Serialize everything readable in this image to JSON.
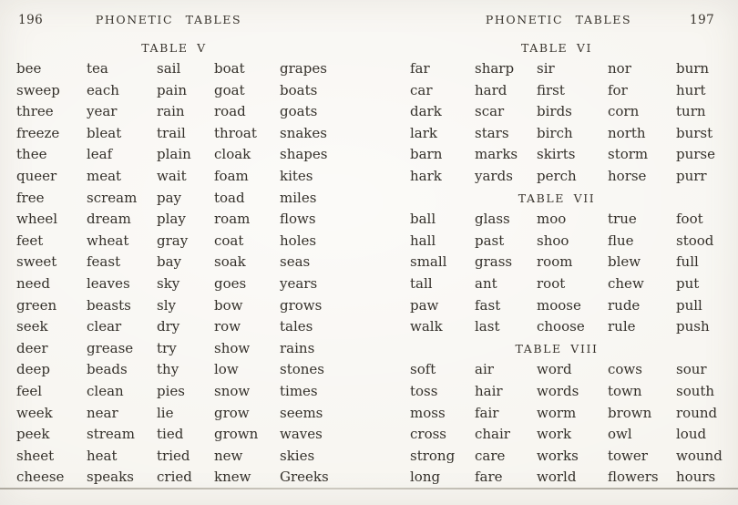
{
  "meta": {
    "paper_color": "#f7f5f0",
    "ink_color": "#34302a",
    "kind": "scanned-book-spread"
  },
  "left_page": {
    "page_number": "196",
    "running_head": "PHONETIC TABLES",
    "tables": [
      {
        "title": "TABLE V",
        "rows": [
          [
            "bee",
            "tea",
            "sail",
            "boat",
            "grapes"
          ],
          [
            "sweep",
            "each",
            "pain",
            "goat",
            "boats"
          ],
          [
            "three",
            "year",
            "rain",
            "road",
            "goats"
          ],
          [
            "freeze",
            "bleat",
            "trail",
            "throat",
            "snakes"
          ],
          [
            "thee",
            "leaf",
            "plain",
            "cloak",
            "shapes"
          ],
          [
            "queer",
            "meat",
            "wait",
            "foam",
            "kites"
          ],
          [
            "free",
            "scream",
            "pay",
            "toad",
            "miles"
          ],
          [
            "wheel",
            "dream",
            "play",
            "roam",
            "flows"
          ],
          [
            "feet",
            "wheat",
            "gray",
            "coat",
            "holes"
          ],
          [
            "sweet",
            "feast",
            "bay",
            "soak",
            "seas"
          ],
          [
            "need",
            "leaves",
            "sky",
            "goes",
            "years"
          ],
          [
            "green",
            "beasts",
            "sly",
            "bow",
            "grows"
          ],
          [
            "seek",
            "clear",
            "dry",
            "row",
            "tales"
          ],
          [
            "deer",
            "grease",
            "try",
            "show",
            "rains"
          ],
          [
            "deep",
            "beads",
            "thy",
            "low",
            "stones"
          ],
          [
            "feel",
            "clean",
            "pies",
            "snow",
            "times"
          ],
          [
            "week",
            "near",
            "lie",
            "grow",
            "seems"
          ],
          [
            "peek",
            "stream",
            "tied",
            "grown",
            "waves"
          ],
          [
            "sheet",
            "heat",
            "tried",
            "new",
            "skies"
          ],
          [
            "cheese",
            "speaks",
            "cried",
            "knew",
            "Greeks"
          ]
        ]
      }
    ]
  },
  "right_page": {
    "page_number": "197",
    "running_head": "PHONETIC TABLES",
    "tables": [
      {
        "title": "TABLE VI",
        "rows": [
          [
            "far",
            "sharp",
            "sir",
            "nor",
            "burn"
          ],
          [
            "car",
            "hard",
            "first",
            "for",
            "hurt"
          ],
          [
            "dark",
            "scar",
            "birds",
            "corn",
            "turn"
          ],
          [
            "lark",
            "stars",
            "birch",
            "north",
            "burst"
          ],
          [
            "barn",
            "marks",
            "skirts",
            "storm",
            "purse"
          ],
          [
            "hark",
            "yards",
            "perch",
            "horse",
            "purr"
          ]
        ]
      },
      {
        "title": "TABLE VII",
        "rows": [
          [
            "ball",
            "glass",
            "moo",
            "true",
            "foot"
          ],
          [
            "hall",
            "past",
            "shoo",
            "flue",
            "stood"
          ],
          [
            "small",
            "grass",
            "room",
            "blew",
            "full"
          ],
          [
            "tall",
            "ant",
            "root",
            "chew",
            "put"
          ],
          [
            "paw",
            "fast",
            "moose",
            "rude",
            "pull"
          ],
          [
            "walk",
            "last",
            "choose",
            "rule",
            "push"
          ]
        ]
      },
      {
        "title": "TABLE VIII",
        "rows": [
          [
            "soft",
            "air",
            "word",
            "cows",
            "sour"
          ],
          [
            "toss",
            "hair",
            "words",
            "town",
            "south"
          ],
          [
            "moss",
            "fair",
            "worm",
            "brown",
            "round"
          ],
          [
            "cross",
            "chair",
            "work",
            "owl",
            "loud"
          ],
          [
            "strong",
            "care",
            "works",
            "tower",
            "wound"
          ],
          [
            "long",
            "fare",
            "world",
            "flowers",
            "hours"
          ]
        ]
      }
    ]
  }
}
